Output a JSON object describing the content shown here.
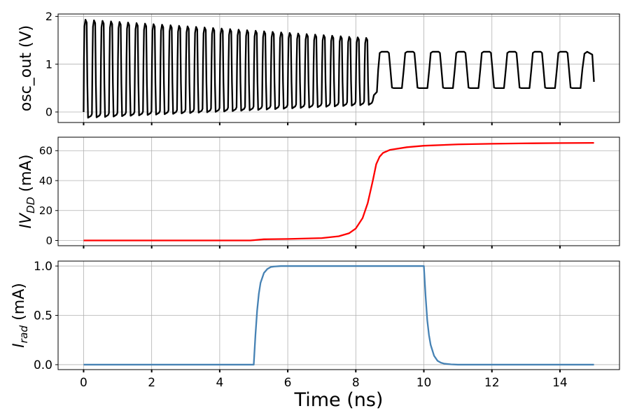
{
  "chart_data": [
    {
      "type": "line",
      "ylabel": "osc_out (V)",
      "ylim": [
        -0.22,
        2.05
      ],
      "xlim": [
        -0.75,
        15.75
      ],
      "xticks": [
        0,
        2,
        4,
        6,
        8,
        10,
        12,
        14
      ],
      "yticks": [
        0,
        1,
        2
      ],
      "ytick_labels": [
        "0",
        "1",
        "2"
      ],
      "grid": true,
      "show_xtick_labels": false,
      "series": [
        {
          "color": "#000000",
          "signal": "square_oscillation",
          "x_range": [
            0,
            15
          ],
          "phase1": {
            "x": [
              0,
              8.5
            ],
            "period_ns": 0.25,
            "high_v": [
              1.93,
              1.55
            ],
            "low_v": [
              -0.12,
              0.15
            ]
          },
          "phase2": {
            "x": [
              8.5,
              15
            ],
            "period_ns": 0.75,
            "high_v": 1.26,
            "low_v": 0.5
          }
        }
      ]
    },
    {
      "type": "line",
      "ylabel": "IV_DD (mA)",
      "ylabel_main": "IV",
      "ylabel_sub": "DD",
      "ylabel_unit": " (mA)",
      "ylim": [
        -3.5,
        69
      ],
      "xlim": [
        -0.75,
        15.75
      ],
      "xticks": [
        0,
        2,
        4,
        6,
        8,
        10,
        12,
        14
      ],
      "yticks": [
        0,
        20,
        40,
        60
      ],
      "ytick_labels": [
        "0",
        "20",
        "40",
        "60"
      ],
      "grid": true,
      "show_xtick_labels": false,
      "series": [
        {
          "color": "#ff0000",
          "x": [
            0,
            4.9,
            5.0,
            5.3,
            6.0,
            7.0,
            7.5,
            7.8,
            8.0,
            8.2,
            8.35,
            8.5,
            8.6,
            8.7,
            8.8,
            9.0,
            9.5,
            10.0,
            11.0,
            12.0,
            13.0,
            14.0,
            15.0
          ],
          "values": [
            0,
            0,
            0.2,
            0.8,
            1.0,
            1.6,
            2.8,
            4.8,
            8.0,
            15.0,
            25.0,
            40.0,
            51.0,
            56.0,
            58.5,
            60.5,
            62.3,
            63.3,
            64.2,
            64.6,
            64.9,
            65.1,
            65.2
          ]
        }
      ]
    },
    {
      "type": "line",
      "ylabel": "I_rad (mA)",
      "ylabel_main": "I",
      "ylabel_sub": "rad",
      "ylabel_unit": " (mA)",
      "xlabel": "Time (ns)",
      "ylim": [
        -0.05,
        1.05
      ],
      "xlim": [
        -0.75,
        15.75
      ],
      "xticks": [
        0,
        2,
        4,
        6,
        8,
        10,
        12,
        14
      ],
      "xtick_labels": [
        "0",
        "2",
        "4",
        "6",
        "8",
        "10",
        "12",
        "14"
      ],
      "yticks": [
        0,
        0.5,
        1.0
      ],
      "ytick_labels": [
        "0.0",
        "0.5",
        "1.0"
      ],
      "grid": true,
      "show_xtick_labels": true,
      "series": [
        {
          "color": "#4682b4",
          "x": [
            0,
            5.0,
            5.05,
            5.1,
            5.15,
            5.2,
            5.3,
            5.4,
            5.5,
            5.6,
            5.8,
            6.0,
            9.99,
            10.0,
            10.05,
            10.1,
            10.15,
            10.2,
            10.3,
            10.4,
            10.5,
            10.6,
            10.8,
            11.0,
            15.0
          ],
          "values": [
            0,
            0,
            0.3,
            0.55,
            0.72,
            0.83,
            0.93,
            0.97,
            0.99,
            0.995,
            1.0,
            1.0,
            1.0,
            1.0,
            0.7,
            0.45,
            0.3,
            0.2,
            0.09,
            0.04,
            0.02,
            0.01,
            0.003,
            0.0,
            0.0
          ]
        }
      ]
    }
  ]
}
